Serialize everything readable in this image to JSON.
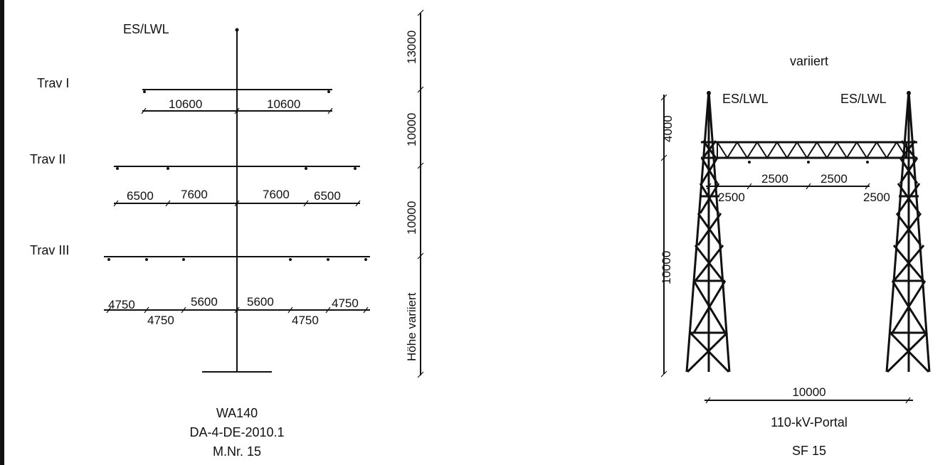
{
  "left_tower": {
    "earth_wire_label": "ES/LWL",
    "crossarm_labels": [
      "Trav I",
      "Trav II",
      "Trav III"
    ],
    "trav1_dims": [
      "10600",
      "10600"
    ],
    "trav2_dims": [
      "6500",
      "7600",
      "7600",
      "6500"
    ],
    "trav3_dims_top": [
      "4750",
      "5600",
      "5600",
      "4750"
    ],
    "trav3_dims_bottom": [
      "4750",
      "4750"
    ],
    "height_dims": [
      "13000",
      "10000",
      "10000",
      "Höhe variiert"
    ],
    "caption": [
      "WA140",
      "DA-4-DE-2010.1",
      "M.Nr. 15"
    ]
  },
  "portal": {
    "top_label": "variiert",
    "earth_wire_labels": [
      "ES/LWL",
      "ES/LWL"
    ],
    "height_dims": [
      "4000",
      "10000"
    ],
    "beam_dims_top": [
      "2500",
      "2500"
    ],
    "beam_dims_side": [
      "2500",
      "2500"
    ],
    "width_dim": "10000",
    "caption": [
      "110-kV-Portal",
      "SF 15"
    ]
  }
}
